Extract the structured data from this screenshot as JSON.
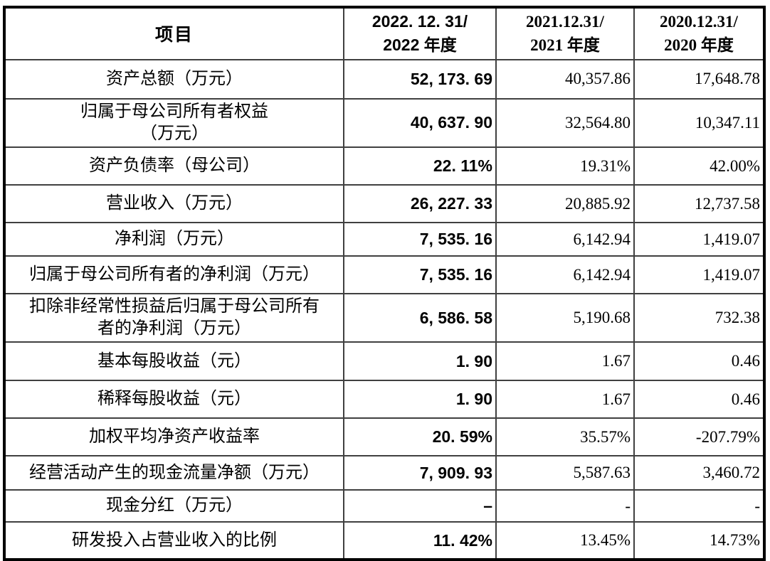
{
  "table": {
    "header": {
      "item_label": "项目",
      "periods": [
        {
          "line1": "2022. 12. 31/",
          "line2": "2022 年度"
        },
        {
          "line1": "2021.12.31/",
          "line2": "2021 年度"
        },
        {
          "line1": "2020.12.31/",
          "line2": "2020 年度"
        }
      ]
    },
    "rows": [
      {
        "label": "资产总额（万元）",
        "y2022": "52, 173. 69",
        "y2021": "40,357.86",
        "y2020": "17,648.78"
      },
      {
        "label": "归属于母公司所有者权益\n（万元）",
        "y2022": "40, 637. 90",
        "y2021": "32,564.80",
        "y2020": "10,347.11"
      },
      {
        "label": "资产负债率（母公司）",
        "y2022": "22. 11%",
        "y2021": "19.31%",
        "y2020": "42.00%"
      },
      {
        "label": "营业收入（万元）",
        "y2022": "26, 227. 33",
        "y2021": "20,885.92",
        "y2020": "12,737.58"
      },
      {
        "label": "净利润（万元）",
        "y2022": "7, 535. 16",
        "y2021": "6,142.94",
        "y2020": "1,419.07"
      },
      {
        "label": "归属于母公司所有者的净利润（万元）",
        "y2022": "7, 535. 16",
        "y2021": "6,142.94",
        "y2020": "1,419.07"
      },
      {
        "label": "扣除非经常性损益后归属于母公司所有\n者的净利润（万元）",
        "y2022": "6, 586. 58",
        "y2021": "5,190.68",
        "y2020": "732.38"
      },
      {
        "label": "基本每股收益（元）",
        "y2022": "1. 90",
        "y2021": "1.67",
        "y2020": "0.46"
      },
      {
        "label": "稀释每股收益（元）",
        "y2022": "1. 90",
        "y2021": "1.67",
        "y2020": "0.46"
      },
      {
        "label": "加权平均净资产收益率",
        "y2022": "20. 59%",
        "y2021": "35.57%",
        "y2020": "-207.79%"
      },
      {
        "label": "经营活动产生的现金流量净额（万元）",
        "y2022": "7, 909. 93",
        "y2021": "5,587.63",
        "y2020": "3,460.72"
      },
      {
        "label": "现金分红（万元）",
        "y2022": "–",
        "y2021": "-",
        "y2020": "-"
      },
      {
        "label": "研发投入占营业收入的比例",
        "y2022": "11. 42%",
        "y2021": "13.45%",
        "y2020": "14.73%"
      }
    ],
    "colors": {
      "outer_border": "#000000",
      "grid_line": "#404040",
      "text": "#000000",
      "background": "#ffffff"
    }
  }
}
